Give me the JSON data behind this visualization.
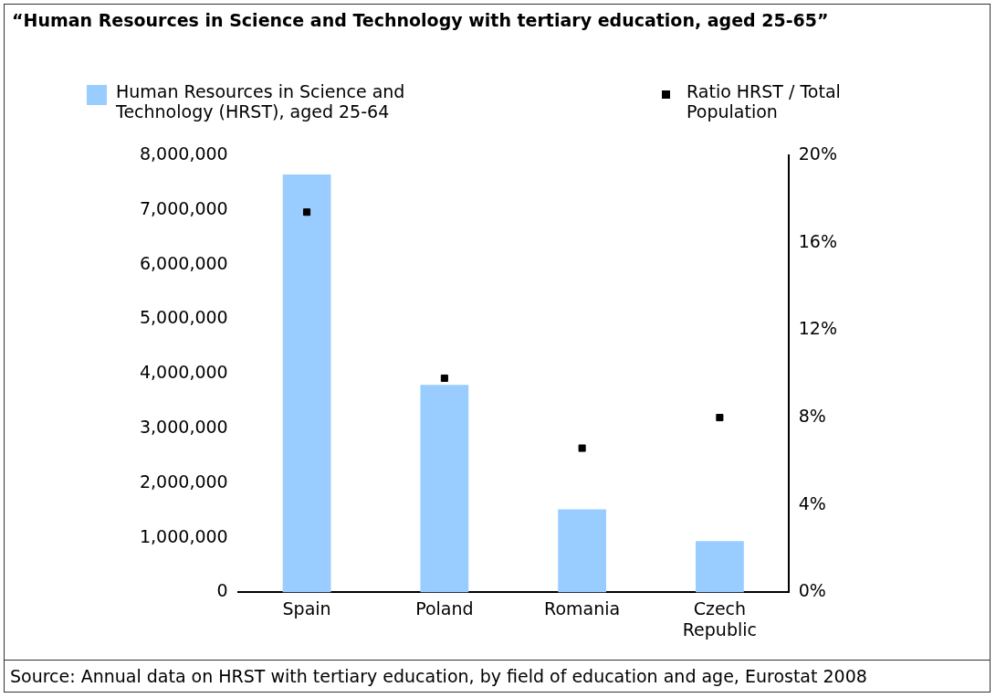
{
  "chart_data": {
    "type": "bar",
    "title": "“Human Resources in Science and Technology with tertiary education, aged 25-65”",
    "categories": [
      "Spain",
      "Poland",
      "Romania",
      "Czech Republic"
    ],
    "series": [
      {
        "name": "Human Resources in Science and Technology (HRST), aged 25-64",
        "color": "#99ccff",
        "values": [
          7650000,
          3800000,
          1520000,
          940000
        ]
      },
      {
        "name": "Ratio HRST / Total Population",
        "type": "scatter",
        "axis": "y2",
        "color": "#000000",
        "x": [
          "Spain",
          "Poland",
          "Romania",
          "Czech Republic"
        ],
        "values": [
          17.4,
          9.8,
          6.6,
          8.0
        ]
      }
    ],
    "ylim": [
      0,
      8000000
    ],
    "yticks": [
      0,
      {
        "value": 1000000,
        "label": "1,000,000"
      },
      {
        "value": 2000000,
        "label": "2,000,000"
      },
      {
        "value": 3000000,
        "label": "3,000,000"
      },
      {
        "value": 4000000,
        "label": "4,000,000"
      },
      {
        "value": 5000000,
        "label": "5,000,000"
      },
      {
        "value": 6000000,
        "label": "6,000,000"
      },
      {
        "value": 7000000,
        "label": "7,000,000"
      },
      {
        "value": 8000000,
        "label": "8,000,000"
      }
    ],
    "y2lim": [
      0,
      20
    ],
    "y2ticks": [
      {
        "value": 0,
        "label": "0%"
      },
      {
        "value": 4,
        "label": "4%"
      },
      {
        "value": 8,
        "label": "8%"
      },
      {
        "value": 12,
        "label": "12%"
      },
      {
        "value": 16,
        "label": "16%"
      },
      {
        "value": 20,
        "label": "20%"
      }
    ],
    "grid": false,
    "legend": "top",
    "marker": "square",
    "annotations": [
      "Source: Annual data on HRST with tertiary education, by field of education and age, Eurostat 2008"
    ]
  }
}
